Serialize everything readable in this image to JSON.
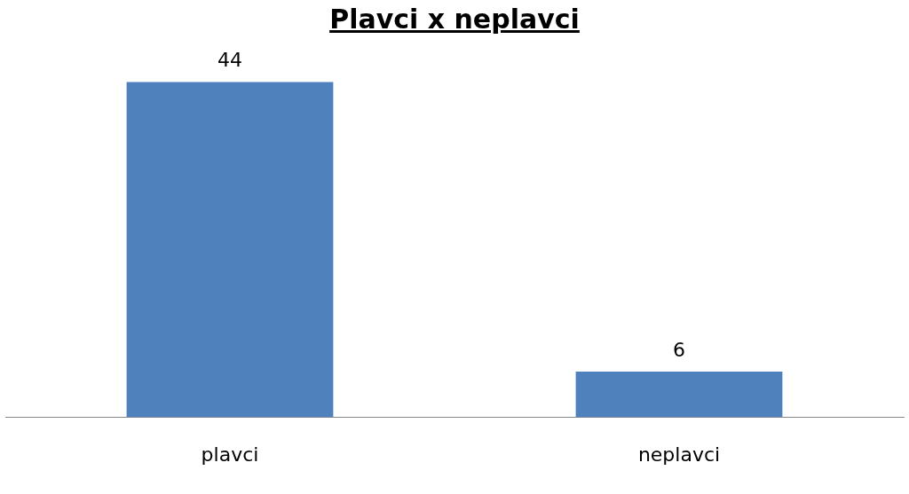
{
  "chart_data": {
    "type": "bar",
    "title": "Plavci x neplavci",
    "categories": [
      "plavci",
      "neplavci"
    ],
    "values": [
      44,
      6
    ],
    "color": "#4f81bd",
    "data_labels": true,
    "grid": false,
    "legend": false
  }
}
